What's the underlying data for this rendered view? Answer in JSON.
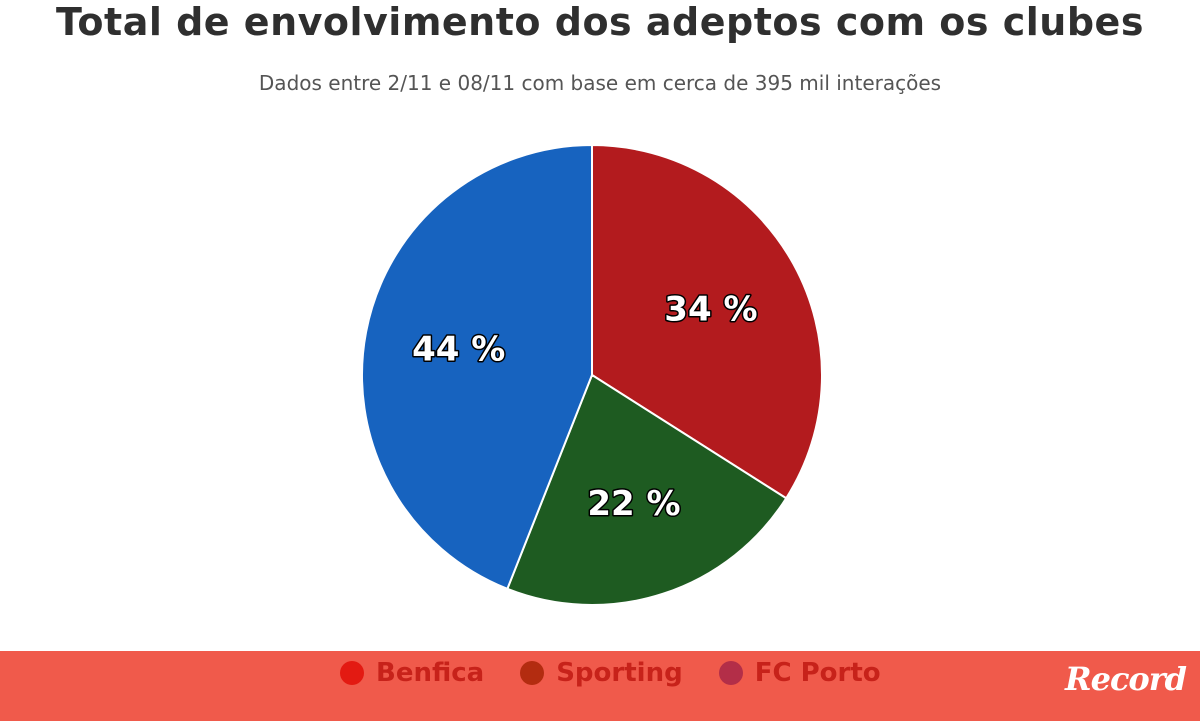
{
  "chart_data": {
    "type": "pie",
    "title": "Total de envolvimento dos adeptos com os clubes",
    "subtitle": "Dados entre 2/11 e 08/11 com base em cerca de 395 mil interações",
    "slices": [
      {
        "name": "Benfica",
        "value": 34,
        "label": "34 %",
        "color": "#b31b1e"
      },
      {
        "name": "Sporting",
        "value": 22,
        "label": "22 %",
        "color": "#1e5b21"
      },
      {
        "name": "FC Porto",
        "value": 44,
        "label": "44 %",
        "color": "#1763bf"
      }
    ],
    "legend_position": "bottom"
  },
  "legend": {
    "background": "#f05a4b",
    "items": [
      {
        "label": "Benfica",
        "swatch_color": "#e31a12",
        "text_color": "#c7221a"
      },
      {
        "label": "Sporting",
        "swatch_color": "#b32c10",
        "text_color": "#c7221a"
      },
      {
        "label": "FC Porto",
        "swatch_color": "#b32e48",
        "text_color": "#c7221a"
      }
    ]
  },
  "brand": {
    "logo_text": "Record"
  }
}
